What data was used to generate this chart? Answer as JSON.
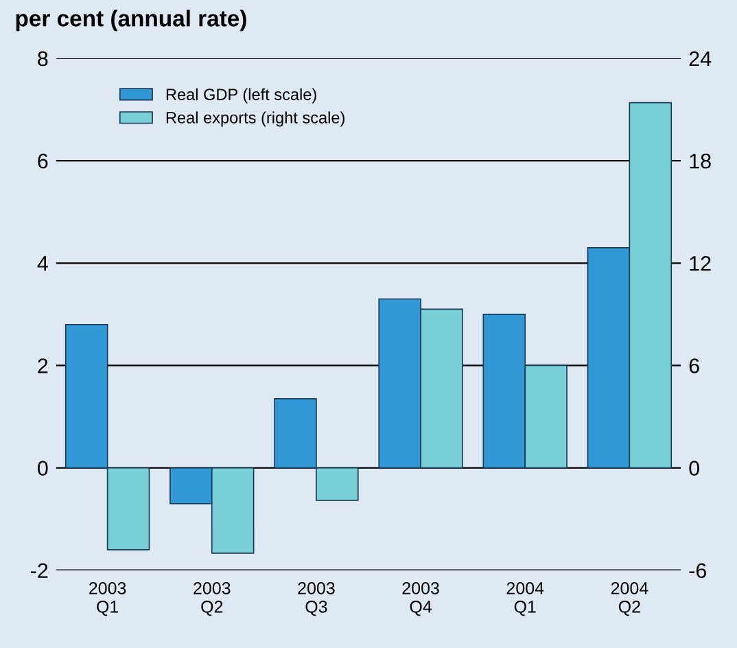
{
  "chart_data": {
    "type": "bar",
    "title": "per cent (annual rate)",
    "categories": [
      "2003\nQ1",
      "2003\nQ2",
      "2003\nQ3",
      "2003\nQ4",
      "2004\nQ1",
      "2004\nQ2"
    ],
    "series": [
      {
        "name": "Real GDP (left scale)",
        "color": "#3399d6",
        "values": [
          2.8,
          -0.7,
          1.35,
          3.3,
          3.0,
          4.3
        ]
      },
      {
        "name": "Real exports (right scale)",
        "color": "#78cfd6",
        "axis": "y2",
        "values": [
          -4.8,
          -5.0,
          -1.9,
          9.3,
          6.0,
          21.4
        ]
      }
    ],
    "ylim": [
      -2,
      8
    ],
    "yticks": [
      -2,
      0,
      2,
      4,
      6,
      8
    ],
    "y2lim": [
      -6,
      24
    ],
    "y2ticks": [
      -6,
      0,
      6,
      12,
      18,
      24
    ],
    "grid": "y",
    "legend": "top left"
  }
}
